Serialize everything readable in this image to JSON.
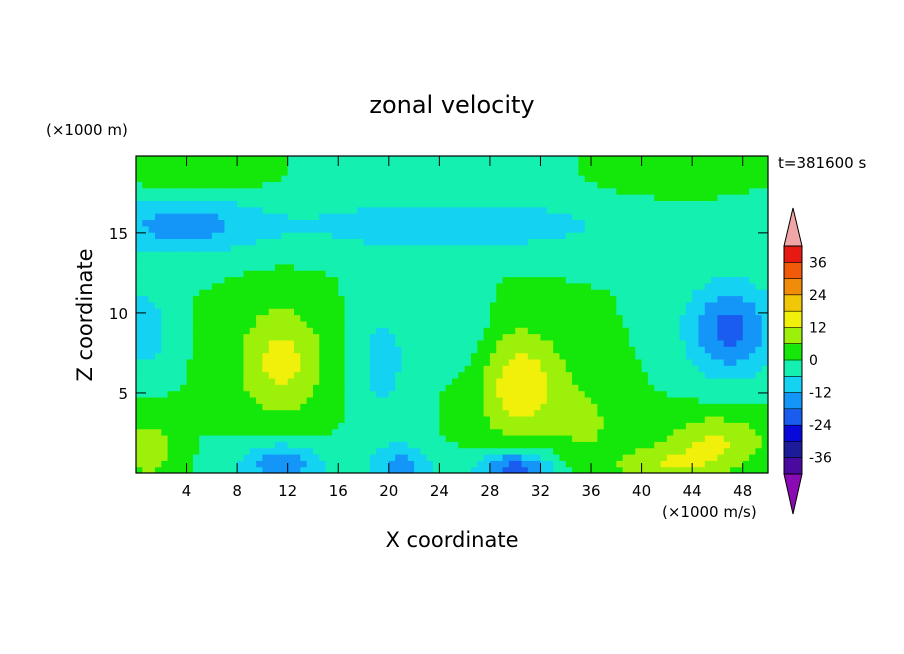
{
  "chart_data": {
    "type": "heatmap",
    "title": "zonal velocity",
    "xlabel": "X coordinate",
    "ylabel": "Z coordinate",
    "y_unit_label": "(×1000 m)",
    "colorbar_unit_label": "(×1000 m/s)",
    "time_label": "t=381600 s",
    "x_ticks": [
      4,
      8,
      12,
      16,
      20,
      24,
      28,
      32,
      36,
      40,
      44,
      48
    ],
    "y_ticks": [
      5,
      10,
      15
    ],
    "xlim": [
      0,
      50
    ],
    "ylim": [
      0,
      19.8
    ],
    "colorbar": {
      "levels": [
        -42,
        -36,
        -30,
        -24,
        -18,
        -12,
        -6,
        0,
        6,
        12,
        18,
        24,
        30,
        36,
        42
      ],
      "tick_labels": [
        "36",
        "24",
        "12",
        "0",
        "-12",
        "-24",
        "-36"
      ],
      "colors": [
        "#4a0aa0",
        "#1c1c9a",
        "#0808d8",
        "#1a5cf0",
        "#1496f8",
        "#14d2f2",
        "#14f0b0",
        "#14e80a",
        "#9cf00a",
        "#f0f00a",
        "#f0c808",
        "#f08c08",
        "#f05a08",
        "#e61a12"
      ],
      "under_color": "#8a0ab4",
      "over_color": "#f0a6a6"
    },
    "features": [
      {
        "x": 11.5,
        "z": 7.0,
        "value": 14,
        "sx": 3.5,
        "sz": 3.5
      },
      {
        "x": 30.5,
        "z": 5.5,
        "value": 16,
        "sx": 3.5,
        "sz": 3.5
      },
      {
        "x": 46.0,
        "z": 2.0,
        "value": 12,
        "sx": 4.0,
        "sz": 1.8
      },
      {
        "x": 1.0,
        "z": 1.5,
        "value": 10,
        "sx": 2.0,
        "sz": 2.0
      },
      {
        "x": 42.0,
        "z": 0.5,
        "value": 10,
        "sx": 4.0,
        "sz": 1.2
      },
      {
        "x": 36.0,
        "z": 3.0,
        "value": 6,
        "sx": 3.0,
        "sz": 3.0
      },
      {
        "x": 19.5,
        "z": 7.0,
        "value": -8,
        "sx": 2.5,
        "sz": 4.0
      },
      {
        "x": 11.5,
        "z": 0.5,
        "value": -16,
        "sx": 3.5,
        "sz": 1.5
      },
      {
        "x": 30.0,
        "z": 0.3,
        "value": -22,
        "sx": 3.0,
        "sz": 1.2
      },
      {
        "x": 21.0,
        "z": 0.5,
        "value": -14,
        "sx": 2.5,
        "sz": 1.3
      },
      {
        "x": 47.0,
        "z": 9.0,
        "value": -20,
        "sx": 3.5,
        "sz": 3.0
      },
      {
        "x": 3.5,
        "z": 15.5,
        "value": -14,
        "sx": 6.0,
        "sz": 1.8
      },
      {
        "x": 25.0,
        "z": 15.5,
        "value": -10,
        "sx": 15.0,
        "sz": 1.8
      },
      {
        "x": 0.5,
        "z": 9.0,
        "value": -12,
        "sx": 2.0,
        "sz": 2.5
      },
      {
        "x": 5.0,
        "z": 18.3,
        "value": 6,
        "sx": 4.0,
        "sz": 0.9
      },
      {
        "x": 42.0,
        "z": 18.3,
        "value": 6,
        "sx": 4.0,
        "sz": 0.9
      },
      {
        "x": 26.0,
        "z": 9.0,
        "value": -6,
        "sx": 2.0,
        "sz": 3.0
      }
    ]
  }
}
